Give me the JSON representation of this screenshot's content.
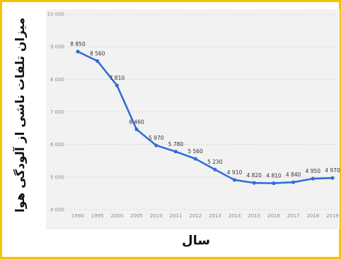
{
  "chart_data": {
    "type": "line",
    "xlabel": "سال",
    "ylabel": "میزان تلفات ناشی از آلودگی هوا",
    "categories": [
      "1990",
      "1995",
      "2000",
      "2005",
      "2010",
      "2011",
      "2012",
      "2013",
      "2014",
      "2015",
      "2016",
      "2017",
      "2018",
      "2019"
    ],
    "series": [
      {
        "values": [
          8850,
          8560,
          7810,
          6460,
          5970,
          5780,
          5560,
          5230,
          4910,
          4820,
          4810,
          4840,
          4950,
          4970
        ]
      }
    ],
    "data_labels": [
      "8 850",
      "8 560",
      "7 810",
      "6 460",
      "5 970",
      "5 780",
      "5 560",
      "5 230",
      "4 910",
      "4 820",
      "4 810",
      "4 840",
      "4 950",
      "4 970"
    ],
    "yticks": [
      4000,
      5000,
      6000,
      7000,
      8000,
      9000,
      10000
    ],
    "ytick_labels": [
      "4 000",
      "5 000",
      "6 000",
      "7 000",
      "8 000",
      "9 000",
      "10 000"
    ],
    "ylim": [
      4000,
      10000
    ],
    "grid": true,
    "line_color": "#2f6fd6"
  }
}
